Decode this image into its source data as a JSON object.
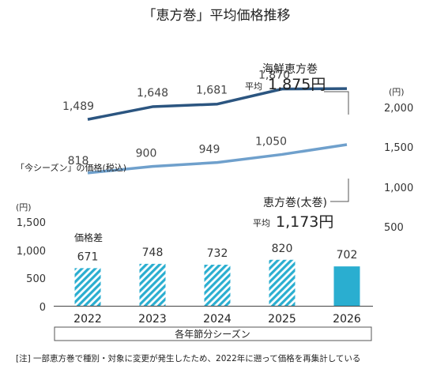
{
  "chart_data": {
    "type": "line",
    "title": "「恵方巻」平均価格推移",
    "categories": [
      "2022",
      "2023",
      "2024",
      "2025",
      "2026"
    ],
    "series": [
      {
        "name": "海鮮恵方巻",
        "type": "line",
        "axis": "right",
        "values": [
          1489,
          1648,
          1681,
          1870,
          1875
        ],
        "data_labels": [
          "1,489",
          "1,648",
          "1,681",
          "1,870",
          ""
        ],
        "color": "#2b5580"
      },
      {
        "name": "恵方巻(太巻)",
        "type": "line",
        "axis": "right",
        "values": [
          818,
          900,
          949,
          1050,
          1173
        ],
        "data_labels": [
          "818",
          "900",
          "949",
          "1,050",
          ""
        ],
        "color": "#6fa0cc"
      },
      {
        "name": "価格差",
        "type": "bar",
        "axis": "left",
        "values": [
          671,
          748,
          732,
          820,
          702
        ],
        "data_labels": [
          "671",
          "748",
          "732",
          "820",
          "702"
        ],
        "color": "#2aaed0",
        "hatched": [
          true,
          true,
          true,
          true,
          false
        ]
      }
    ],
    "left_axis": {
      "unit": "(円)",
      "ylim": [
        0,
        1500
      ],
      "ticks": [
        "0",
        "500",
        "1,000",
        "1,500"
      ]
    },
    "right_axis": {
      "unit": "(円)",
      "ylim": [
        500,
        2000
      ],
      "ticks": [
        "500",
        "1,000",
        "1,500",
        "2,000"
      ]
    },
    "annotations": {
      "seafood_title": "海鮮恵方巻",
      "seafood_prefix": "平均",
      "seafood_value": "1,875円",
      "futomaki_title": "恵方巻(太巻)",
      "futomaki_prefix": "平均",
      "futomaki_value": "1,173円",
      "section_label": "「今シーズン」の価格(税込)",
      "diff_label": "価格差"
    },
    "xlabel": "各年節分シーズン",
    "note": "[注] 一部恵方巻で種別・対象に変更が発生したため、2022年に遡って価格を再集計している"
  }
}
